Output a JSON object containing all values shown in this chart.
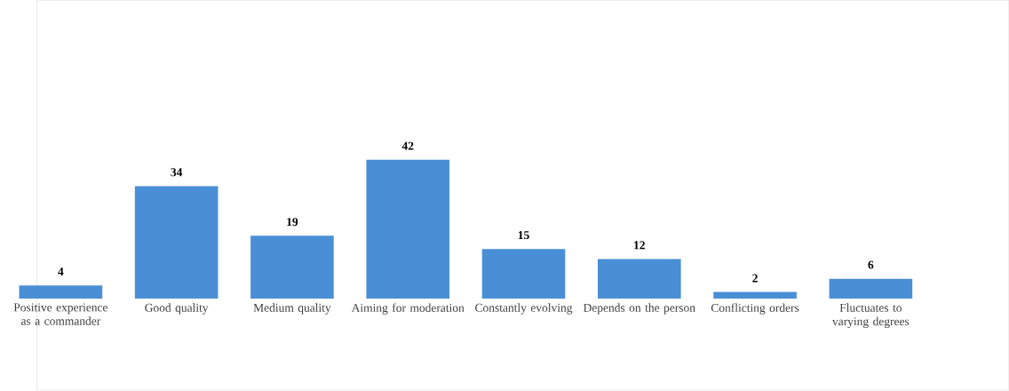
{
  "chart_data": {
    "type": "bar",
    "categories": [
      "Positive experience as a commander",
      "Good quality",
      "Medium quality",
      "Aiming for moderation",
      "Constantly evolving",
      "Depends on the person",
      "Conflicting orders",
      "Fluctuates to varying degrees"
    ],
    "values": [
      4,
      34,
      19,
      42,
      15,
      12,
      2,
      6
    ],
    "color": "#4a8fd6",
    "data_labels": true
  }
}
